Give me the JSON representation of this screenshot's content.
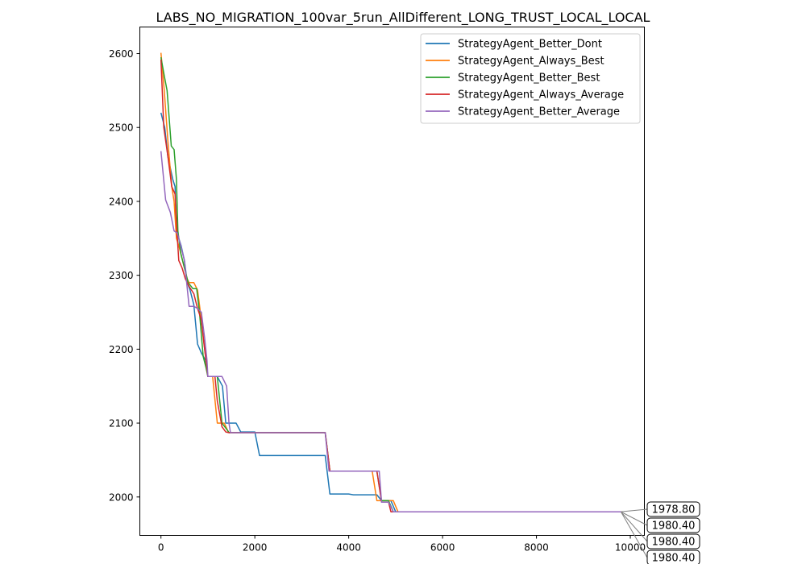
{
  "chart_data": {
    "type": "line",
    "title": "LABS_NO_MIGRATION_100var_5run_AllDifferent_LONG_TRUST_LOCAL_LOCAL",
    "xlabel": "",
    "ylabel": "",
    "xlim": [
      -450,
      10300
    ],
    "ylim": [
      1948,
      2636
    ],
    "xticks": [
      0,
      2000,
      4000,
      6000,
      8000,
      10000
    ],
    "yticks": [
      2000,
      2100,
      2200,
      2300,
      2400,
      2500,
      2600
    ],
    "grid": false,
    "legend_position": "top-right",
    "series": [
      {
        "name": "StrategyAgent_Better_Dont",
        "color": "#1f77b4",
        "points": [
          [
            0,
            2520
          ],
          [
            80,
            2500
          ],
          [
            150,
            2460
          ],
          [
            250,
            2430
          ],
          [
            300,
            2420
          ],
          [
            330,
            2360
          ],
          [
            380,
            2350
          ],
          [
            430,
            2340
          ],
          [
            500,
            2320
          ],
          [
            560,
            2290
          ],
          [
            620,
            2280
          ],
          [
            700,
            2260
          ],
          [
            780,
            2207
          ],
          [
            860,
            2195
          ],
          [
            950,
            2185
          ],
          [
            1000,
            2163
          ],
          [
            1200,
            2163
          ],
          [
            1310,
            2150
          ],
          [
            1380,
            2100
          ],
          [
            1600,
            2100
          ],
          [
            1700,
            2088
          ],
          [
            2000,
            2088
          ],
          [
            2100,
            2056
          ],
          [
            3500,
            2056
          ],
          [
            3600,
            2004
          ],
          [
            4000,
            2004
          ],
          [
            4100,
            2003
          ],
          [
            4600,
            2003
          ],
          [
            4700,
            1995
          ],
          [
            4900,
            1995
          ],
          [
            5000,
            1980
          ],
          [
            9800,
            1980
          ]
        ]
      },
      {
        "name": "StrategyAgent_Always_Best",
        "color": "#ff7f0e",
        "points": [
          [
            0,
            2601
          ],
          [
            70,
            2550
          ],
          [
            150,
            2480
          ],
          [
            230,
            2420
          ],
          [
            280,
            2400
          ],
          [
            330,
            2350
          ],
          [
            380,
            2340
          ],
          [
            460,
            2320
          ],
          [
            560,
            2295
          ],
          [
            600,
            2290
          ],
          [
            700,
            2290
          ],
          [
            780,
            2280
          ],
          [
            860,
            2240
          ],
          [
            950,
            2190
          ],
          [
            1000,
            2163
          ],
          [
            1100,
            2163
          ],
          [
            1200,
            2100
          ],
          [
            1350,
            2100
          ],
          [
            1420,
            2090
          ],
          [
            1450,
            2087
          ],
          [
            3500,
            2087
          ],
          [
            3600,
            2035
          ],
          [
            4500,
            2035
          ],
          [
            4600,
            1995
          ],
          [
            4700,
            1995
          ],
          [
            4800,
            1995
          ],
          [
            4950,
            1995
          ],
          [
            5050,
            1980
          ],
          [
            9800,
            1980
          ]
        ]
      },
      {
        "name": "StrategyAgent_Better_Best",
        "color": "#2ca02c",
        "points": [
          [
            0,
            2595
          ],
          [
            70,
            2570
          ],
          [
            130,
            2550
          ],
          [
            220,
            2475
          ],
          [
            280,
            2470
          ],
          [
            330,
            2430
          ],
          [
            360,
            2360
          ],
          [
            420,
            2330
          ],
          [
            500,
            2310
          ],
          [
            580,
            2290
          ],
          [
            680,
            2282
          ],
          [
            760,
            2282
          ],
          [
            820,
            2250
          ],
          [
            900,
            2190
          ],
          [
            960,
            2175
          ],
          [
            1000,
            2163
          ],
          [
            1200,
            2163
          ],
          [
            1300,
            2100
          ],
          [
            1420,
            2090
          ],
          [
            1450,
            2087
          ],
          [
            3500,
            2087
          ],
          [
            3600,
            2035
          ],
          [
            4600,
            2035
          ],
          [
            4700,
            1995
          ],
          [
            4850,
            1995
          ],
          [
            4950,
            1980
          ],
          [
            9800,
            1980
          ]
        ]
      },
      {
        "name": "StrategyAgent_Always_Average",
        "color": "#d62728",
        "points": [
          [
            0,
            2592
          ],
          [
            60,
            2500
          ],
          [
            150,
            2460
          ],
          [
            230,
            2420
          ],
          [
            300,
            2410
          ],
          [
            340,
            2360
          ],
          [
            380,
            2320
          ],
          [
            450,
            2310
          ],
          [
            520,
            2295
          ],
          [
            600,
            2285
          ],
          [
            700,
            2275
          ],
          [
            780,
            2255
          ],
          [
            860,
            2240
          ],
          [
            920,
            2205
          ],
          [
            970,
            2180
          ],
          [
            1000,
            2163
          ],
          [
            1150,
            2163
          ],
          [
            1200,
            2130
          ],
          [
            1300,
            2095
          ],
          [
            1380,
            2088
          ],
          [
            1450,
            2087
          ],
          [
            3500,
            2087
          ],
          [
            3600,
            2035
          ],
          [
            4600,
            2035
          ],
          [
            4700,
            1993
          ],
          [
            4850,
            1993
          ],
          [
            4900,
            1980
          ],
          [
            9800,
            1980
          ]
        ]
      },
      {
        "name": "StrategyAgent_Better_Average",
        "color": "#9467bd",
        "points": [
          [
            0,
            2468
          ],
          [
            100,
            2402
          ],
          [
            200,
            2385
          ],
          [
            280,
            2360
          ],
          [
            350,
            2357
          ],
          [
            420,
            2340
          ],
          [
            500,
            2320
          ],
          [
            600,
            2258
          ],
          [
            700,
            2258
          ],
          [
            780,
            2255
          ],
          [
            860,
            2250
          ],
          [
            930,
            2215
          ],
          [
            980,
            2185
          ],
          [
            1000,
            2163
          ],
          [
            1300,
            2163
          ],
          [
            1400,
            2150
          ],
          [
            1450,
            2100
          ],
          [
            1480,
            2087
          ],
          [
            3500,
            2087
          ],
          [
            3580,
            2035
          ],
          [
            4650,
            2035
          ],
          [
            4700,
            1993
          ],
          [
            4850,
            1993
          ],
          [
            4950,
            1980
          ],
          [
            9800,
            1980
          ]
        ]
      }
    ],
    "annotations": [
      "1978.80",
      "1980.40",
      "1980.40",
      "1980.40"
    ],
    "annotation_anchor": [
      9800,
      1980
    ]
  }
}
